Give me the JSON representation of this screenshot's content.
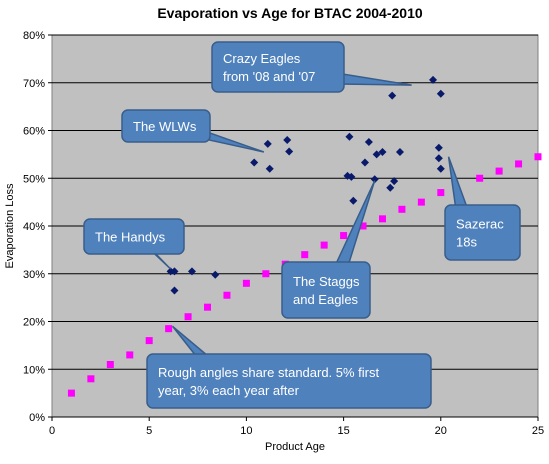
{
  "chart_data": {
    "type": "scatter",
    "title": "Evaporation vs Age for BTAC 2004-2010",
    "xlabel": "Product Age",
    "ylabel": "Evaporation Loss",
    "xlim": [
      0,
      25
    ],
    "ylim": [
      0,
      0.8
    ],
    "x_ticks": [
      0,
      5,
      10,
      15,
      20,
      25
    ],
    "x_tick_labels": [
      "0",
      "5",
      "10",
      "15",
      "20",
      "25"
    ],
    "y_ticks": [
      0,
      0.1,
      0.2,
      0.3,
      0.4,
      0.5,
      0.6,
      0.7,
      0.8
    ],
    "y_tick_labels": [
      "0%",
      "10%",
      "20%",
      "30%",
      "40%",
      "50%",
      "60%",
      "70%",
      "80%"
    ],
    "grid": "horizontal",
    "plot_background": "#c0c0c0",
    "series": [
      {
        "marker": "diamond",
        "color": "#0a1a6b",
        "points": [
          [
            6.1,
            0.305
          ],
          [
            6.3,
            0.305
          ],
          [
            6.3,
            0.265
          ],
          [
            7.2,
            0.305
          ],
          [
            8.4,
            0.298
          ],
          [
            10.4,
            0.533
          ],
          [
            11.1,
            0.572
          ],
          [
            11.2,
            0.52
          ],
          [
            12.1,
            0.58
          ],
          [
            12.2,
            0.556
          ],
          [
            15.2,
            0.505
          ],
          [
            15.3,
            0.587
          ],
          [
            15.4,
            0.503
          ],
          [
            15.5,
            0.453
          ],
          [
            16.1,
            0.533
          ],
          [
            16.3,
            0.576
          ],
          [
            16.6,
            0.498
          ],
          [
            16.7,
            0.55
          ],
          [
            17.0,
            0.555
          ],
          [
            17.4,
            0.48
          ],
          [
            17.5,
            0.673
          ],
          [
            17.6,
            0.494
          ],
          [
            17.9,
            0.555
          ],
          [
            19.6,
            0.706
          ],
          [
            19.9,
            0.564
          ],
          [
            19.9,
            0.542
          ],
          [
            20.0,
            0.677
          ],
          [
            20.0,
            0.52
          ]
        ]
      },
      {
        "marker": "square",
        "color": "#ff00ff",
        "points": [
          [
            1,
            0.05
          ],
          [
            2,
            0.08
          ],
          [
            3,
            0.11
          ],
          [
            4,
            0.13
          ],
          [
            5,
            0.16
          ],
          [
            6,
            0.185
          ],
          [
            7,
            0.21
          ],
          [
            8,
            0.23
          ],
          [
            9,
            0.255
          ],
          [
            10,
            0.28
          ],
          [
            11,
            0.3
          ],
          [
            12,
            0.32
          ],
          [
            13,
            0.34
          ],
          [
            14,
            0.36
          ],
          [
            15,
            0.38
          ],
          [
            16,
            0.4
          ],
          [
            17,
            0.415
          ],
          [
            18,
            0.435
          ],
          [
            19,
            0.45
          ],
          [
            20,
            0.47
          ],
          [
            22,
            0.5
          ],
          [
            23,
            0.515
          ],
          [
            24,
            0.53
          ],
          [
            25,
            0.545
          ]
        ]
      }
    ],
    "annotations": [
      {
        "lines": [
          "Crazy Eagles",
          "from '08  and '07"
        ],
        "target": [
          18.5,
          0.695
        ]
      },
      {
        "lines": [
          "The WLWs"
        ],
        "target": [
          10.9,
          0.555
        ]
      },
      {
        "lines": [
          "The Handys"
        ],
        "target": [
          6.1,
          0.31
        ]
      },
      {
        "lines": [
          "The Staggs",
          "and Eagles"
        ],
        "target": [
          16.6,
          0.495
        ]
      },
      {
        "lines": [
          "Sazerac",
          "18s"
        ],
        "target": [
          20.4,
          0.545
        ]
      },
      {
        "lines": [
          "Rough angles share standard.  5% first",
          "year, 3% each year after"
        ],
        "target": [
          6.2,
          0.19
        ]
      }
    ],
    "callout_fill": "#4f81bd",
    "callout_stroke": "#385d8a"
  }
}
